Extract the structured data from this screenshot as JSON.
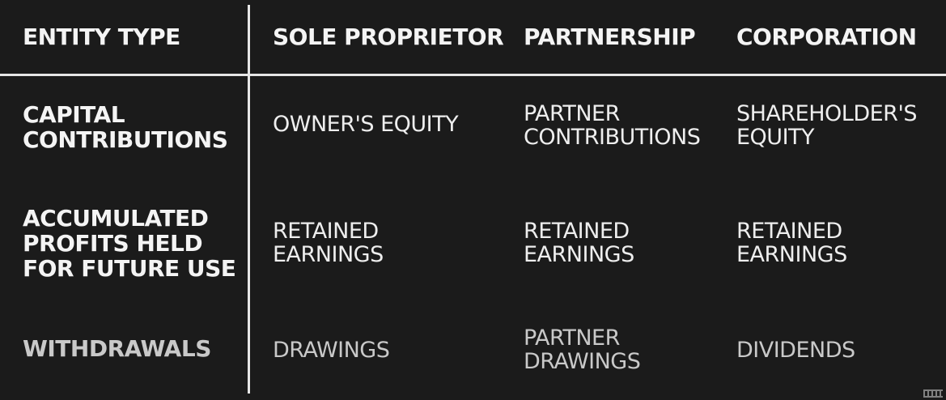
{
  "header": {
    "entity_type": "ENTITY TYPE",
    "sole_proprietor": "SOLE PROPRIETOR",
    "partnership": "PARTNERSHIP",
    "corporation": "CORPORATION"
  },
  "rows": [
    {
      "label": "CAPITAL\nCONTRIBUTIONS",
      "sole_proprietor": "OWNER'S EQUITY",
      "partnership": "PARTNER\nCONTRIBUTIONS",
      "corporation": "SHAREHOLDER'S\nEQUITY"
    },
    {
      "label": "ACCUMULATED\nPROFITS HELD\nFOR FUTURE USE",
      "sole_proprietor": "RETAINED\nEARNINGS",
      "partnership": "RETAINED\nEARNINGS",
      "corporation": "RETAINED\nEARNINGS"
    },
    {
      "label": "WITHDRAWALS",
      "sole_proprietor": "DRAWINGS",
      "partnership": "PARTNER\nDRAWINGS",
      "corporation": "DIVIDENDS"
    }
  ],
  "colors": {
    "background": "#1b1b1b",
    "text": "#f2f2f2",
    "rule": "#e6e6e6"
  }
}
